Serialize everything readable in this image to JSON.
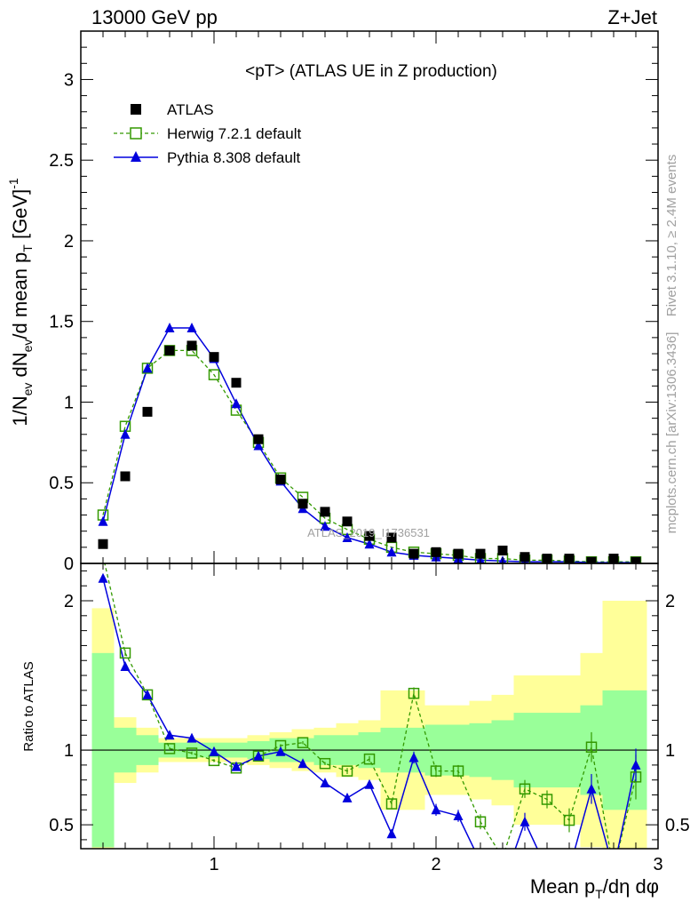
{
  "header": {
    "energy": "13000 GeV pp",
    "process": "Z+Jet"
  },
  "side_text": {
    "rivet": "Rivet 3.1.10, ≥ 2.4M events",
    "mcplots": "mcplots.cern.ch [arXiv:1306.3436]"
  },
  "watermark": "ATLAS_2019_I1736531",
  "colors": {
    "atlas": "#000000",
    "herwig": "#339900",
    "pythia": "#0000dd",
    "band_inner": "#99ff99",
    "band_outer": "#ffff99"
  },
  "chart_data": [
    {
      "type": "scatter",
      "panel": "main",
      "title": "<pT> (ATLAS UE in Z production)",
      "ylabel": "1/N_ev dN_ev/d mean p_T [GeV]^-1",
      "xlim": [
        0.4,
        3.0
      ],
      "ylim": [
        0,
        3.3
      ],
      "yticks": [
        0,
        0.5,
        1,
        1.5,
        2,
        2.5,
        3
      ],
      "ytick_labels": [
        "0",
        "0.5",
        "1",
        "1.5",
        "2",
        "2.5",
        "3"
      ],
      "legend_position": "top-left",
      "x": [
        0.5,
        0.6,
        0.7,
        0.8,
        0.9,
        1.0,
        1.1,
        1.2,
        1.3,
        1.4,
        1.5,
        1.6,
        1.7,
        1.8,
        1.9,
        2.0,
        2.1,
        2.2,
        2.3,
        2.4,
        2.5,
        2.6,
        2.7,
        2.8,
        2.9
      ],
      "series": [
        {
          "name": "ATLAS",
          "marker": "square",
          "values": [
            0.12,
            0.54,
            0.94,
            1.32,
            1.35,
            1.28,
            1.12,
            0.77,
            0.52,
            0.37,
            0.32,
            0.26,
            0.17,
            0.16,
            0.06,
            0.07,
            0.06,
            0.06,
            0.08,
            0.04,
            0.03,
            0.03,
            0.01,
            0.03,
            0.01
          ]
        },
        {
          "name": "Herwig 7.2.1 default",
          "marker": "open-square",
          "line": "dashed",
          "values": [
            0.3,
            0.85,
            1.21,
            1.32,
            1.32,
            1.17,
            0.95,
            0.75,
            0.53,
            0.41,
            0.28,
            0.21,
            0.15,
            0.1,
            0.07,
            0.06,
            0.05,
            0.03,
            0.03,
            0.02,
            0.02,
            0.015,
            0.01,
            0.01,
            0.01
          ]
        },
        {
          "name": "Pythia 8.308 default",
          "marker": "triangle",
          "line": "solid",
          "values": [
            0.26,
            0.8,
            1.21,
            1.46,
            1.46,
            1.27,
            0.99,
            0.73,
            0.51,
            0.34,
            0.23,
            0.16,
            0.12,
            0.07,
            0.05,
            0.04,
            0.03,
            0.02,
            0.015,
            0.01,
            0.01,
            0.01,
            0.005,
            0.005,
            0.005
          ]
        }
      ]
    },
    {
      "type": "line",
      "panel": "ratio",
      "ylabel": "Ratio to ATLAS",
      "xlabel": "Mean p_T/dη dφ",
      "xlim": [
        0.4,
        3.0
      ],
      "ylim": [
        0.34,
        2.25
      ],
      "yticks": [
        0.5,
        1,
        2
      ],
      "ytick_labels": [
        "0.5",
        "1",
        "2"
      ],
      "xticks": [
        1,
        2,
        3
      ],
      "xtick_labels": [
        "1",
        "2",
        "3"
      ],
      "reference": 1,
      "bin_edges": [
        0.45,
        0.55,
        0.65,
        0.75,
        0.85,
        0.95,
        1.05,
        1.15,
        1.25,
        1.35,
        1.45,
        1.55,
        1.65,
        1.75,
        1.85,
        1.95,
        2.05,
        2.15,
        2.25,
        2.35,
        2.45,
        2.55,
        2.65,
        2.75,
        2.85,
        2.95
      ],
      "band_inner_half": [
        0.65,
        0.15,
        0.1,
        0.05,
        0.05,
        0.05,
        0.05,
        0.06,
        0.08,
        0.08,
        0.1,
        0.1,
        0.12,
        0.15,
        0.15,
        0.17,
        0.17,
        0.18,
        0.2,
        0.25,
        0.25,
        0.25,
        0.3,
        0.4,
        0.4
      ],
      "band_outer_half": [
        0.95,
        0.22,
        0.15,
        0.08,
        0.08,
        0.08,
        0.08,
        0.1,
        0.12,
        0.14,
        0.15,
        0.18,
        0.2,
        0.4,
        0.4,
        0.3,
        0.3,
        0.33,
        0.37,
        0.5,
        0.5,
        0.5,
        0.65,
        1.0,
        1.0
      ],
      "x": [
        0.5,
        0.6,
        0.7,
        0.8,
        0.9,
        1.0,
        1.1,
        1.2,
        1.3,
        1.4,
        1.5,
        1.6,
        1.7,
        1.8,
        1.9,
        2.0,
        2.1,
        2.2,
        2.3,
        2.4,
        2.5,
        2.6,
        2.7,
        2.8,
        2.9
      ],
      "series": [
        {
          "name": "Herwig 7.2.1 default",
          "marker": "open-square",
          "line": "dashed",
          "values": [
            2.3,
            1.65,
            1.37,
            1.01,
            0.98,
            0.93,
            0.88,
            0.96,
            1.03,
            1.05,
            0.91,
            0.86,
            0.94,
            0.64,
            1.38,
            0.86,
            0.86,
            0.52,
            0.28,
            0.74,
            0.67,
            0.53,
            1.02,
            0.2,
            0.82
          ],
          "errors": [
            0.02,
            0.02,
            0.02,
            0.01,
            0.01,
            0.01,
            0.01,
            0.01,
            0.01,
            0.01,
            0.01,
            0.02,
            0.02,
            0.03,
            0.04,
            0.04,
            0.04,
            0.05,
            0.05,
            0.06,
            0.06,
            0.08,
            0.1,
            0.1,
            0.15
          ]
        },
        {
          "name": "Pythia 8.308 default",
          "marker": "triangle",
          "line": "solid",
          "values": [
            2.15,
            1.56,
            1.37,
            1.1,
            1.08,
            0.99,
            0.89,
            0.96,
            0.99,
            0.91,
            0.78,
            0.68,
            0.77,
            0.44,
            0.95,
            0.6,
            0.56,
            0.25,
            0.1,
            0.52,
            0.2,
            0.2,
            0.74,
            0.2,
            0.9
          ],
          "errors": [
            0.02,
            0.02,
            0.02,
            0.01,
            0.01,
            0.01,
            0.01,
            0.01,
            0.01,
            0.01,
            0.01,
            0.02,
            0.02,
            0.03,
            0.04,
            0.04,
            0.04,
            0.05,
            0.05,
            0.06,
            0.06,
            0.08,
            0.1,
            0.1,
            0.11
          ]
        }
      ]
    }
  ]
}
